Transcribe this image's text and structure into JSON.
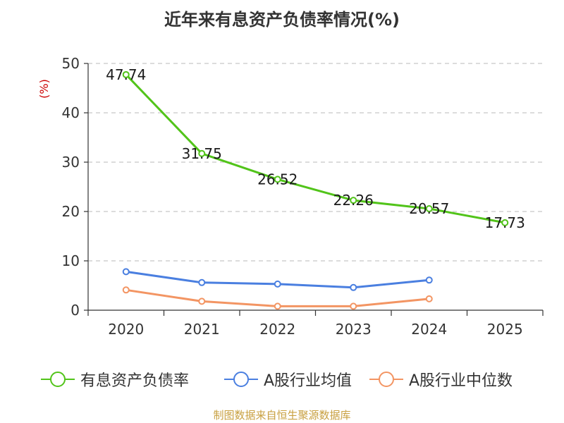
{
  "chart_data": {
    "type": "line",
    "title": "近年来有息资产负债率情况(%)",
    "ylabel": "(%)",
    "xlabel": "",
    "categories": [
      "2020",
      "2021",
      "2022",
      "2023",
      "2024",
      "2025"
    ],
    "ylim": [
      0,
      50
    ],
    "yticks": [
      0,
      10,
      20,
      30,
      40,
      50
    ],
    "grid": "horizontal dashed",
    "legend_position": "bottom",
    "series": [
      {
        "name": "有息资产负债率",
        "color": "#52c41a",
        "values": [
          47.74,
          31.75,
          26.52,
          22.26,
          20.57,
          17.73
        ],
        "labels": [
          "47.74",
          "31.75",
          "26.52",
          "22.26",
          "20.57",
          "17.73"
        ]
      },
      {
        "name": "A股行业均值",
        "color": "#4a7fe0",
        "values": [
          7.8,
          5.6,
          5.3,
          4.6,
          6.1,
          null
        ]
      },
      {
        "name": "A股行业中位数",
        "color": "#f39563",
        "values": [
          4.1,
          1.8,
          0.8,
          0.8,
          2.3,
          null
        ]
      }
    ]
  },
  "source": "制图数据来自恒生聚源数据库"
}
